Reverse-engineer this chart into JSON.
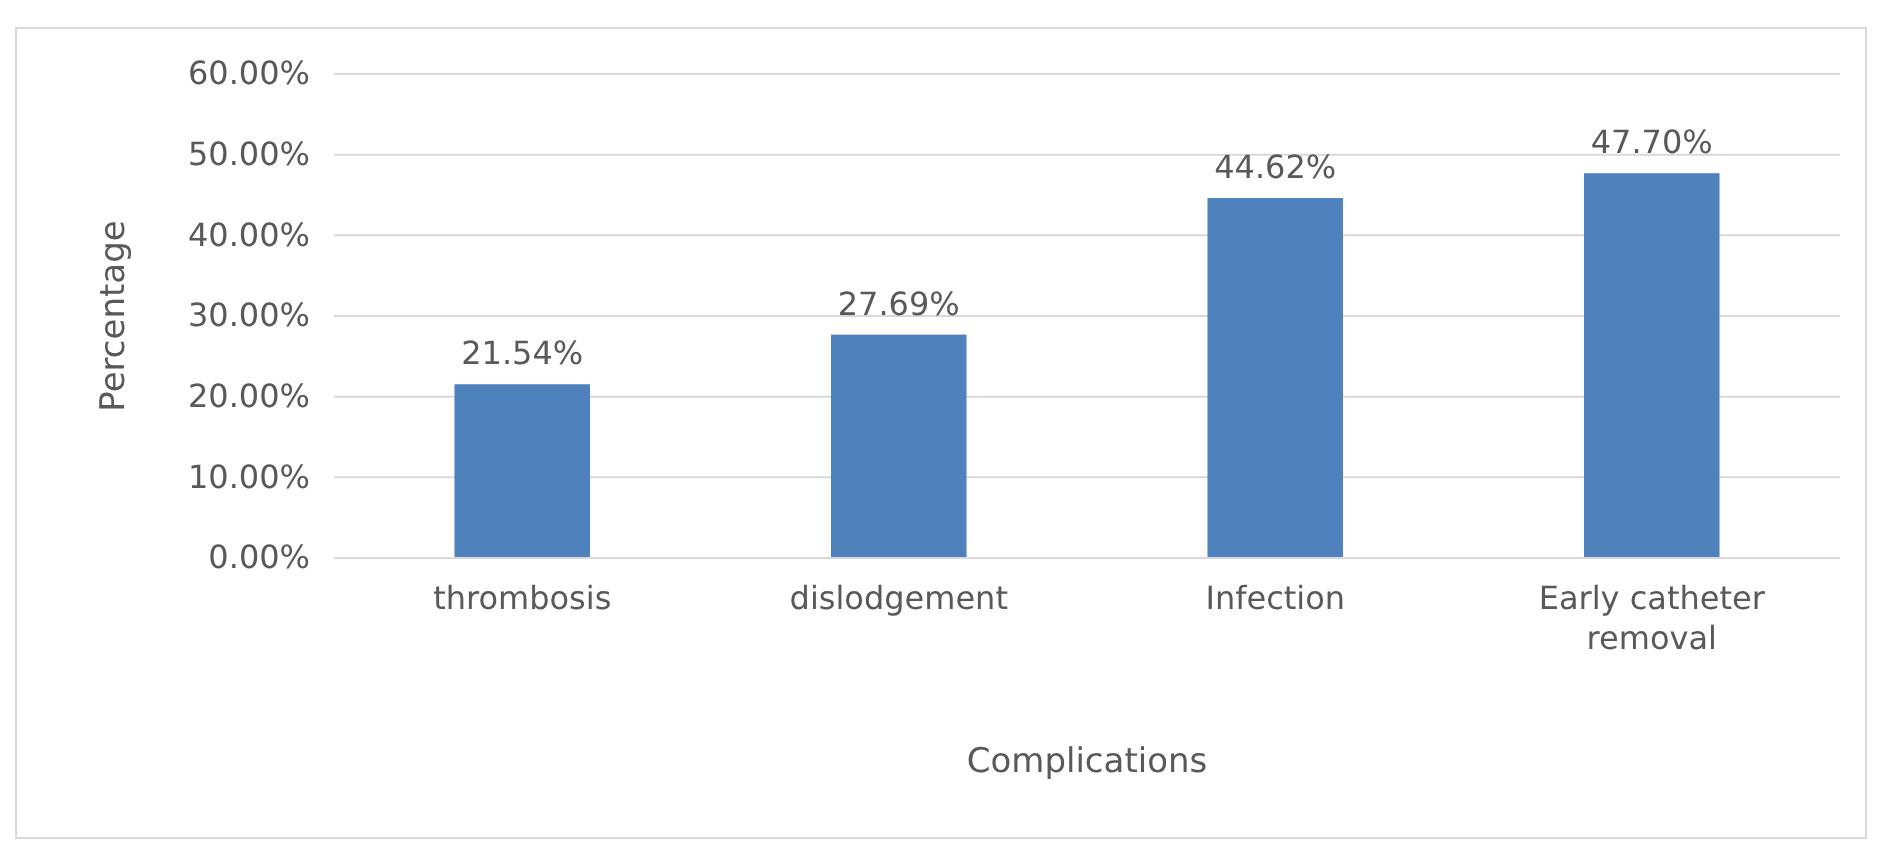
{
  "chart_data": {
    "type": "bar",
    "categories": [
      "thrombosis",
      "dislodgement",
      "Infection",
      "Early catheter removal"
    ],
    "values": [
      21.54,
      27.69,
      44.62,
      47.7
    ],
    "value_labels": [
      "21.54%",
      "27.69%",
      "44.62%",
      "47.70%"
    ],
    "color": "#4f81bd",
    "xlabel": "Complications",
    "ylabel": "Percentage",
    "ylim": [
      0,
      60
    ],
    "yticks": [
      {
        "value": 0,
        "label": "0.00%"
      },
      {
        "value": 10,
        "label": "10.00%"
      },
      {
        "value": 20,
        "label": "20.00%"
      },
      {
        "value": 30,
        "label": "30.00%"
      },
      {
        "value": 40,
        "label": "40.00%"
      },
      {
        "value": 50,
        "label": "50.00%"
      },
      {
        "value": 60,
        "label": "60.00%"
      }
    ],
    "grid": "y"
  }
}
